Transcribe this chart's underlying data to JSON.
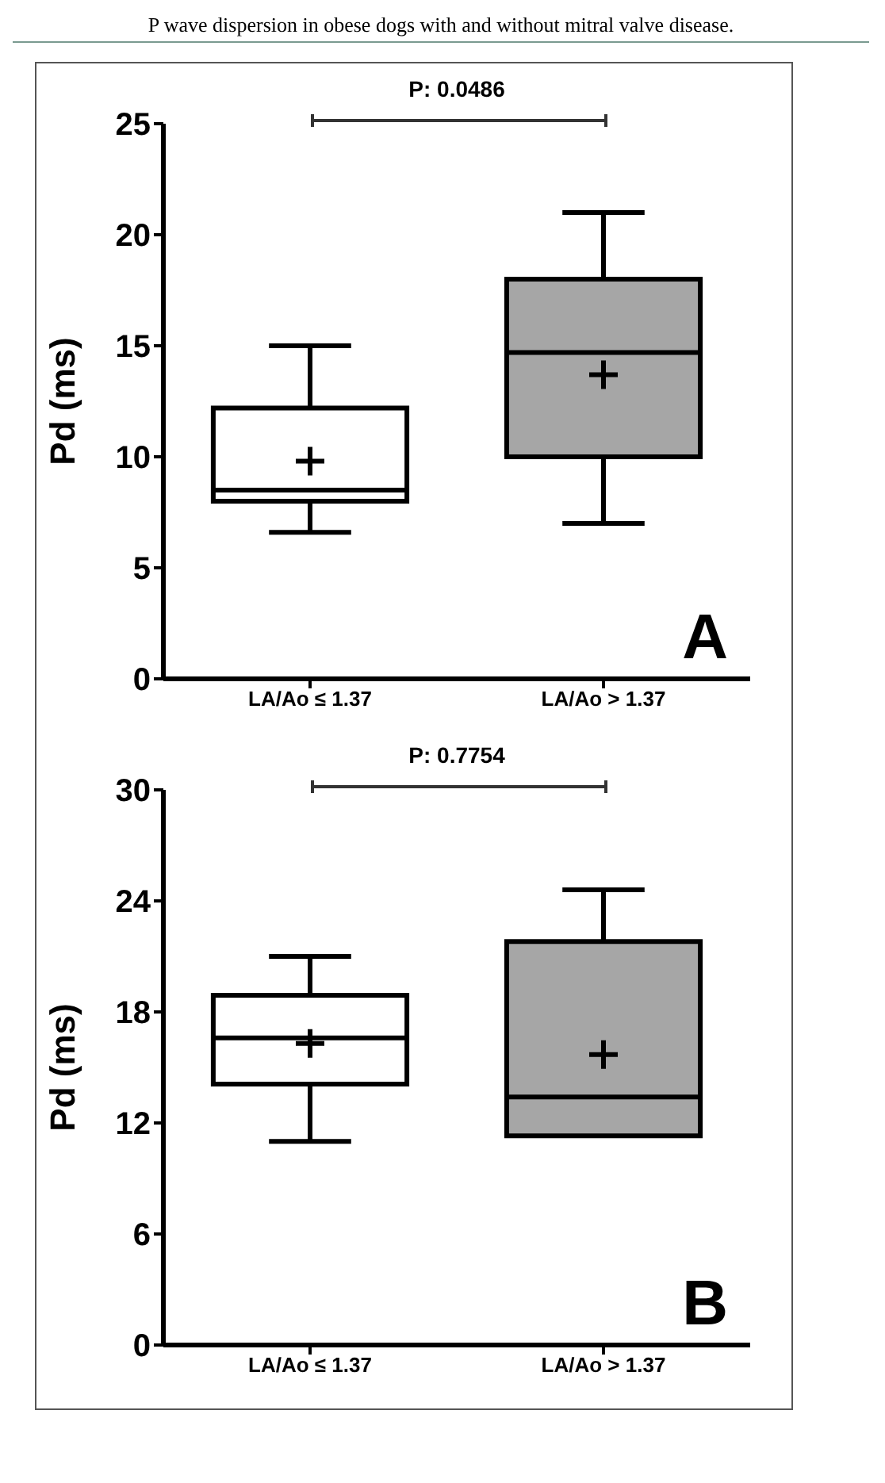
{
  "chart_data": [
    {
      "type": "box",
      "title": "P wave dispersion in obese dogs with and without mitral valve disease.",
      "ylabel": "Pd (ms)",
      "categories": [
        "LA/Ao ≤ 1.37",
        "LA/Ao > 1.37"
      ],
      "colors": [
        "#ffffff",
        "#a6a6a6"
      ],
      "boxes": [
        {
          "low": 6.6,
          "q1": 8.0,
          "median": 8.5,
          "q3": 12.2,
          "high": 15,
          "mean": 9.8
        },
        {
          "low": 7,
          "q1": 10.0,
          "median": 14.7,
          "q3": 18.0,
          "high": 21,
          "mean": 13.7
        }
      ],
      "ylim": [
        0,
        25
      ],
      "yticks": [
        0,
        5,
        10,
        15,
        20,
        25
      ],
      "marker": "cross",
      "annotations": [
        "P: 0.0486",
        "A"
      ]
    },
    {
      "type": "box",
      "ylabel": "Pd (ms)",
      "categories": [
        "LA/Ao ≤ 1.37",
        "LA/Ao > 1.37"
      ],
      "colors": [
        "#ffffff",
        "#a6a6a6"
      ],
      "boxes": [
        {
          "low": 11.0,
          "q1": 14.1,
          "median": 16.6,
          "q3": 18.9,
          "high": 21,
          "mean": 16.3
        },
        {
          "low": 11.3,
          "q1": 11.3,
          "median": 13.4,
          "q3": 21.8,
          "high": 24.6,
          "mean": 15.7
        }
      ],
      "ylim": [
        0,
        30
      ],
      "yticks": [
        0,
        6,
        12,
        18,
        24,
        30
      ],
      "marker": "cross",
      "annotations": [
        "P: 0.7754",
        "B"
      ]
    }
  ]
}
